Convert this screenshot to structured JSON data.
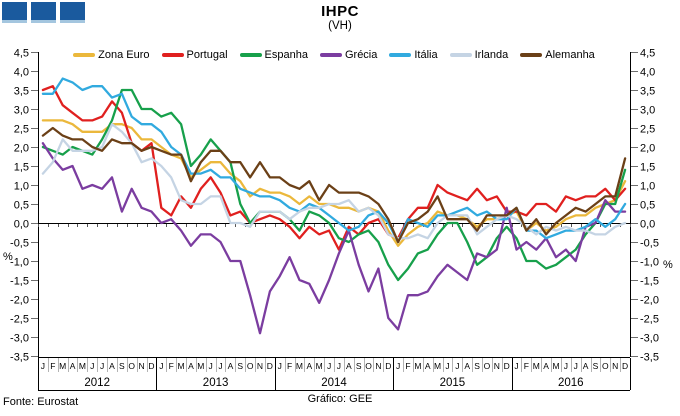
{
  "header": {
    "logo_icon": "three-blue-squares",
    "logo_color": "#1A5A9E"
  },
  "footer": {
    "source": "Fonte: Eurostat",
    "credit": "Gráfico: GEE"
  },
  "chart_data": {
    "type": "line",
    "title": "IHPC",
    "subtitle": "(VH)",
    "ylabel": "%",
    "ylim": [
      -3.5,
      4.5
    ],
    "ytick_step": 0.5,
    "grid": false,
    "legend_position": "top",
    "x_month_letters": [
      "J",
      "F",
      "M",
      "A",
      "M",
      "J",
      "J",
      "A",
      "S",
      "O",
      "N",
      "D"
    ],
    "years": [
      "2012",
      "2013",
      "2014",
      "2015",
      "2016"
    ],
    "series": [
      {
        "name": "Zona Euro",
        "color": "#EBB83C",
        "values": [
          2.7,
          2.7,
          2.7,
          2.6,
          2.4,
          2.4,
          2.4,
          2.6,
          2.6,
          2.5,
          2.2,
          2.2,
          2.0,
          1.8,
          1.7,
          1.2,
          1.4,
          1.6,
          1.6,
          1.3,
          1.1,
          0.7,
          0.9,
          0.8,
          0.8,
          0.7,
          0.5,
          0.7,
          0.5,
          0.5,
          0.4,
          0.4,
          0.3,
          0.4,
          0.3,
          -0.2,
          -0.6,
          -0.3,
          -0.1,
          0.0,
          0.3,
          0.2,
          0.2,
          0.1,
          -0.1,
          0.1,
          0.1,
          0.2,
          0.3,
          -0.2,
          0.0,
          -0.2,
          -0.1,
          0.1,
          0.2,
          0.2,
          0.4,
          0.5,
          0.6,
          1.1
        ]
      },
      {
        "name": "Portugal",
        "color": "#E0201F",
        "values": [
          3.5,
          3.6,
          3.1,
          2.9,
          2.7,
          2.7,
          2.8,
          3.2,
          2.9,
          2.1,
          1.9,
          2.1,
          0.4,
          0.2,
          0.7,
          0.4,
          0.9,
          1.2,
          0.8,
          0.2,
          0.3,
          0.0,
          0.1,
          0.2,
          0.1,
          -0.1,
          -0.4,
          -0.1,
          -0.3,
          -0.2,
          -0.7,
          -0.1,
          -0.3,
          0.0,
          0.1,
          -0.3,
          -0.4,
          0.1,
          0.4,
          0.4,
          1.0,
          0.8,
          0.7,
          0.6,
          0.9,
          0.6,
          0.7,
          0.3,
          0.3,
          0.2,
          0.5,
          0.5,
          0.3,
          0.7,
          0.6,
          0.7,
          0.7,
          0.9,
          0.6,
          0.9
        ]
      },
      {
        "name": "Espanha",
        "color": "#17A04B",
        "values": [
          2.0,
          1.9,
          1.8,
          2.0,
          1.9,
          1.8,
          2.2,
          2.7,
          3.5,
          3.5,
          3.0,
          3.0,
          2.8,
          2.9,
          2.6,
          1.5,
          1.8,
          2.2,
          1.9,
          1.6,
          0.5,
          0.0,
          0.3,
          0.3,
          0.3,
          0.1,
          -0.2,
          0.3,
          0.2,
          0.0,
          -0.4,
          -0.5,
          -0.3,
          -0.2,
          -0.5,
          -1.1,
          -1.5,
          -1.2,
          -0.8,
          -0.7,
          -0.3,
          0.0,
          0.0,
          -0.5,
          -1.1,
          -0.9,
          -0.4,
          -0.1,
          -0.4,
          -1.0,
          -1.0,
          -1.2,
          -1.1,
          -0.9,
          -0.7,
          -0.3,
          0.0,
          0.5,
          0.5,
          1.4
        ]
      },
      {
        "name": "Grécia",
        "color": "#7B3DA0",
        "values": [
          2.1,
          1.7,
          1.4,
          1.5,
          0.9,
          1.0,
          0.9,
          1.2,
          0.3,
          0.9,
          0.4,
          0.3,
          0.0,
          0.1,
          -0.2,
          -0.6,
          -0.3,
          -0.3,
          -0.5,
          -1.0,
          -1.0,
          -1.9,
          -2.9,
          -1.8,
          -1.4,
          -0.9,
          -1.5,
          -1.6,
          -2.1,
          -1.5,
          -0.8,
          -0.2,
          -1.1,
          -1.8,
          -1.2,
          -2.5,
          -2.8,
          -1.9,
          -1.9,
          -1.8,
          -1.4,
          -1.1,
          -1.3,
          -1.5,
          -0.8,
          -0.9,
          -0.7,
          0.4,
          -0.7,
          -0.5,
          -0.7,
          -0.4,
          -0.9,
          -0.7,
          -1.0,
          -0.1,
          0.0,
          0.6,
          0.3,
          0.3
        ]
      },
      {
        "name": "Itália",
        "color": "#31AADF",
        "values": [
          3.4,
          3.4,
          3.8,
          3.7,
          3.5,
          3.6,
          3.6,
          3.3,
          3.4,
          2.8,
          2.6,
          2.6,
          2.4,
          2.0,
          1.8,
          1.3,
          1.3,
          1.4,
          1.2,
          1.2,
          0.9,
          0.8,
          0.7,
          0.7,
          0.6,
          0.4,
          0.3,
          0.5,
          0.4,
          0.2,
          0.0,
          -0.2,
          -0.1,
          0.2,
          0.3,
          0.0,
          -0.5,
          0.1,
          0.0,
          -0.1,
          0.2,
          0.2,
          0.3,
          0.4,
          0.2,
          0.3,
          0.1,
          0.1,
          0.4,
          -0.2,
          -0.2,
          -0.4,
          -0.3,
          -0.2,
          -0.2,
          -0.1,
          0.1,
          -0.1,
          0.1,
          0.5
        ]
      },
      {
        "name": "Irlanda",
        "color": "#C5D4E4",
        "values": [
          1.3,
          1.6,
          2.2,
          1.9,
          1.9,
          1.9,
          2.0,
          2.6,
          2.4,
          2.1,
          1.6,
          1.7,
          1.5,
          1.2,
          0.6,
          0.5,
          0.5,
          0.7,
          0.7,
          0.0,
          0.0,
          -0.1,
          0.3,
          0.3,
          0.3,
          0.1,
          0.3,
          0.4,
          0.4,
          0.5,
          0.5,
          0.6,
          0.3,
          0.4,
          0.2,
          -0.3,
          -0.4,
          -0.4,
          -0.3,
          -0.4,
          0.0,
          0.2,
          0.2,
          0.2,
          -0.3,
          -0.1,
          0.1,
          0.2,
          0.1,
          -0.1,
          -0.3,
          -0.1,
          -0.2,
          -0.1,
          -0.2,
          -0.2,
          -0.3,
          -0.3,
          -0.1,
          0.0
        ]
      },
      {
        "name": "Alemanha",
        "color": "#6B4017",
        "values": [
          2.3,
          2.5,
          2.3,
          2.2,
          2.2,
          2.0,
          1.9,
          2.2,
          2.1,
          2.1,
          1.9,
          2.0,
          1.9,
          1.8,
          1.8,
          1.1,
          1.6,
          1.9,
          1.9,
          1.6,
          1.6,
          1.2,
          1.6,
          1.2,
          1.2,
          1.0,
          0.9,
          1.1,
          0.6,
          1.0,
          0.8,
          0.8,
          0.8,
          0.7,
          0.5,
          0.1,
          -0.5,
          0.0,
          0.1,
          0.3,
          0.7,
          0.1,
          0.1,
          0.1,
          -0.2,
          0.2,
          0.2,
          0.2,
          0.4,
          -0.2,
          0.1,
          -0.3,
          0.0,
          0.2,
          0.4,
          0.3,
          0.5,
          0.7,
          0.7,
          1.7
        ]
      }
    ]
  }
}
